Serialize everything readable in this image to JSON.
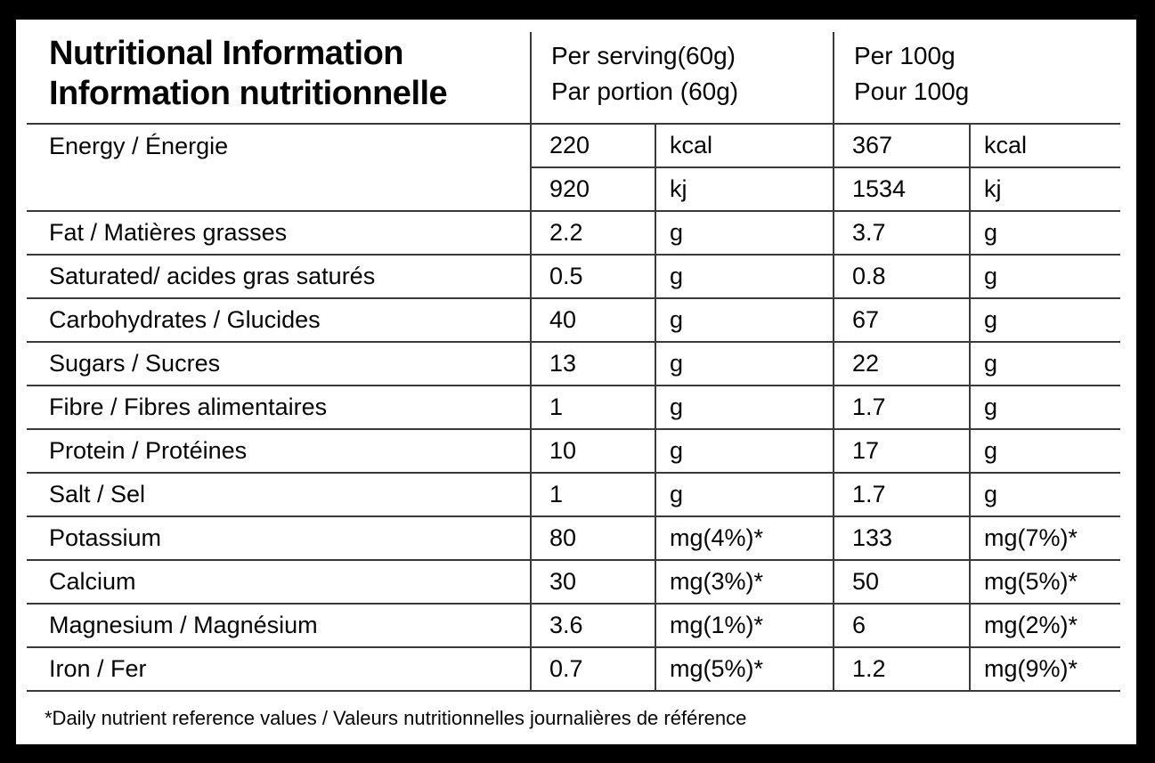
{
  "title": {
    "line1": "Nutritional Information",
    "line2": "Information nutritionnelle"
  },
  "columns": {
    "per_serving": {
      "line1": "Per serving(60g)",
      "line2": "Par portion (60g)"
    },
    "per_100g": {
      "line1": "Per 100g",
      "line2": "Pour 100g"
    }
  },
  "rows": [
    {
      "label": "Energy / Énergie",
      "serving_value": "220",
      "serving_unit": "kcal",
      "per100_value": "367",
      "per100_unit": "kcal"
    },
    {
      "label": "",
      "serving_value": "920",
      "serving_unit": "kj",
      "per100_value": "1534",
      "per100_unit": "kj"
    },
    {
      "label": "Fat / Matières grasses",
      "serving_value": "2.2",
      "serving_unit": "g",
      "per100_value": "3.7",
      "per100_unit": "g"
    },
    {
      "label": "Saturated/ acides gras saturés",
      "serving_value": "0.5",
      "serving_unit": "g",
      "per100_value": "0.8",
      "per100_unit": "g"
    },
    {
      "label": "Carbohydrates / Glucides",
      "serving_value": "40",
      "serving_unit": "g",
      "per100_value": "67",
      "per100_unit": "g"
    },
    {
      "label": "Sugars / Sucres",
      "serving_value": "13",
      "serving_unit": "g",
      "per100_value": "22",
      "per100_unit": "g"
    },
    {
      "label": "Fibre / Fibres alimentaires",
      "serving_value": "1",
      "serving_unit": "g",
      "per100_value": "1.7",
      "per100_unit": "g"
    },
    {
      "label": "Protein / Protéines",
      "serving_value": "10",
      "serving_unit": "g",
      "per100_value": "17",
      "per100_unit": "g"
    },
    {
      "label": "Salt / Sel",
      "serving_value": "1",
      "serving_unit": "g",
      "per100_value": "1.7",
      "per100_unit": "g"
    },
    {
      "label": "Potassium",
      "serving_value": "80",
      "serving_unit": "mg(4%)*",
      "per100_value": "133",
      "per100_unit": "mg(7%)*"
    },
    {
      "label": "Calcium",
      "serving_value": "30",
      "serving_unit": "mg(3%)*",
      "per100_value": "50",
      "per100_unit": "mg(5%)*"
    },
    {
      "label": "Magnesium / Magnésium",
      "serving_value": "3.6",
      "serving_unit": "mg(1%)*",
      "per100_value": "6",
      "per100_unit": "mg(2%)*"
    },
    {
      "label": "Iron / Fer",
      "serving_value": "0.7",
      "serving_unit": "mg(5%)*",
      "per100_value": "1.2",
      "per100_unit": "mg(9%)*"
    }
  ],
  "footnote": "*Daily nutrient reference values / Valeurs nutritionnelles journalières de référence",
  "colors": {
    "frame": "#000000",
    "panel": "#ffffff",
    "line": "#3a3a3a",
    "text": "#050505"
  }
}
